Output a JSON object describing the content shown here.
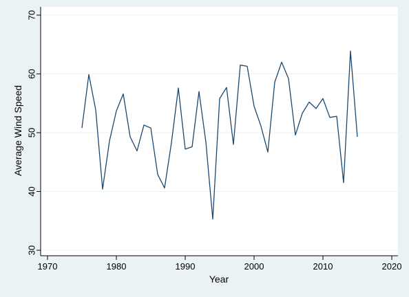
{
  "chart_data": {
    "type": "line",
    "xlabel": "Year",
    "ylabel": "Average Wind Speed",
    "xlim": [
      1970,
      2020
    ],
    "ylim": [
      30,
      70
    ],
    "xticks": [
      "1970",
      "1980",
      "1990",
      "2000",
      "2010",
      "2020"
    ],
    "yticks": [
      "30",
      "40",
      "50",
      "60",
      "70"
    ],
    "grid": true,
    "line_color": "#1a476f",
    "background": "#eaf2f3",
    "plot_background": "#ffffff",
    "x": [
      1975,
      1976,
      1977,
      1978,
      1979,
      1980,
      1981,
      1982,
      1983,
      1984,
      1985,
      1986,
      1987,
      1988,
      1989,
      1990,
      1991,
      1992,
      1993,
      1994,
      1995,
      1996,
      1997,
      1998,
      1999,
      2000,
      2001,
      2002,
      2003,
      2004,
      2005,
      2006,
      2007,
      2008,
      2009,
      2010,
      2011,
      2012,
      2013,
      2014,
      2015
    ],
    "y": [
      50.8,
      59.9,
      53.9,
      40.4,
      48.6,
      53.7,
      56.6,
      49.3,
      46.9,
      51.3,
      50.8,
      42.9,
      40.6,
      48.3,
      57.6,
      47.2,
      47.6,
      57.0,
      48.4,
      35.3,
      55.8,
      57.7,
      48.0,
      61.5,
      61.3,
      54.5,
      51.1,
      46.7,
      58.6,
      62.0,
      59.2,
      49.6,
      53.3,
      55.2,
      54.1,
      55.8,
      52.6,
      52.8,
      41.5,
      63.9,
      49.3
    ]
  }
}
